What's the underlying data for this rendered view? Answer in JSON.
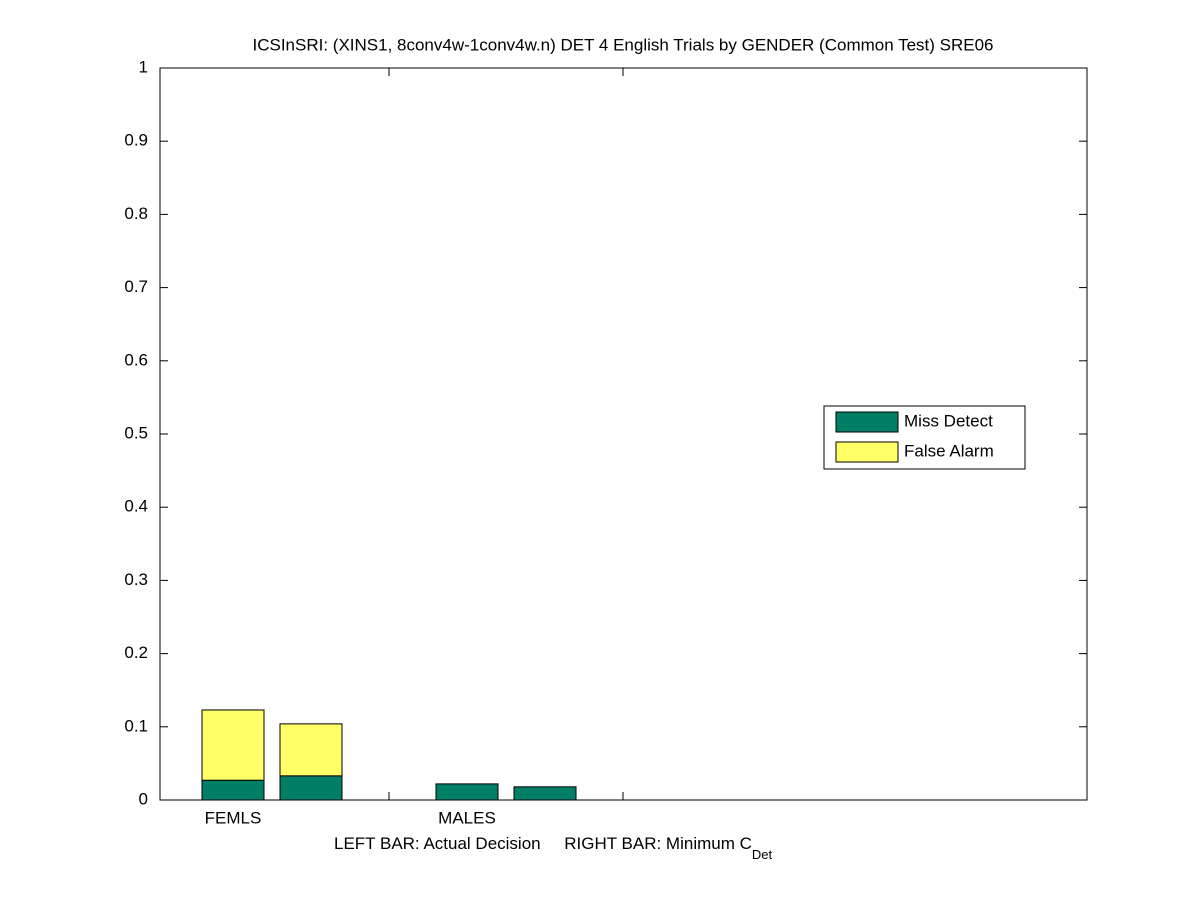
{
  "chart_data": {
    "type": "stacked-bar",
    "title": "ICSInSRI: (XINS1, 8conv4w-1conv4w.n) DET 4 English Trials by GENDER (Common Test) SRE06",
    "xlabel": "LEFT BAR: Actual Decision     RIGHT BAR: Minimum C",
    "xlabel_subscript": "Det",
    "categories": [
      "FEMLS",
      null,
      "MALES",
      null
    ],
    "series": [
      {
        "name": "Miss Detect",
        "color": "#007f66",
        "values": [
          0.027,
          0.033,
          0.022,
          0.018
        ]
      },
      {
        "name": "False Alarm",
        "color": "#ffff66",
        "values": [
          0.096,
          0.071,
          0,
          0
        ]
      }
    ],
    "ylim": [
      0,
      1
    ],
    "yticks": [
      0,
      0.1,
      0.2,
      0.3,
      0.4,
      0.5,
      0.6,
      0.7,
      0.8,
      0.9,
      1
    ],
    "legend": "right"
  }
}
